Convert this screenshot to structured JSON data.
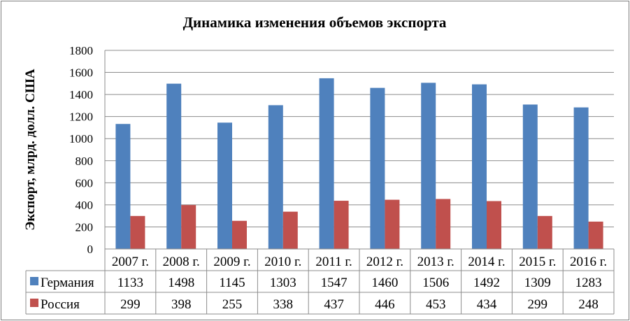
{
  "chart_data": {
    "type": "bar",
    "title": "Динамика изменения объемов экспорта",
    "ylabel": "Экспорт, млрд. долл. США",
    "xlabel": "",
    "categories": [
      "2007 г.",
      "2008 г.",
      "2009 г.",
      "2010 г.",
      "2011 г.",
      "2012 г.",
      "2013 г.",
      "2014 г.",
      "2015 г.",
      "2016 г."
    ],
    "series": [
      {
        "name": "Германия",
        "color": "#4f81bd",
        "values": [
          1133,
          1498,
          1145,
          1303,
          1547,
          1460,
          1506,
          1492,
          1309,
          1283
        ]
      },
      {
        "name": "Россия",
        "color": "#c0504d",
        "values": [
          299,
          398,
          255,
          338,
          437,
          446,
          453,
          434,
          299,
          248
        ]
      }
    ],
    "ylim": [
      0,
      1800
    ],
    "yticks": [
      0,
      200,
      400,
      600,
      800,
      1000,
      1200,
      1400,
      1600,
      1800
    ],
    "grid": true,
    "legend": "data-table-left"
  }
}
